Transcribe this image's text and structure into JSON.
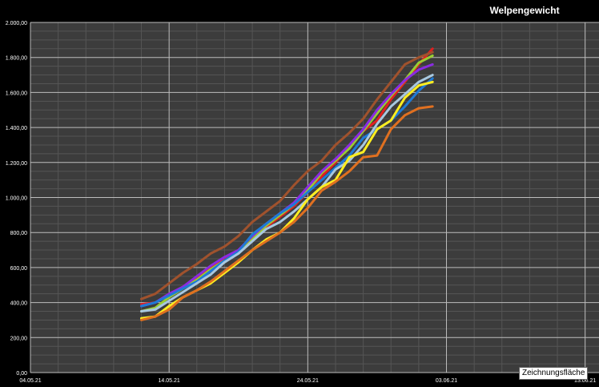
{
  "chart_data": {
    "type": "line",
    "title": "Welpengewicht",
    "xlabel": "",
    "ylabel": "",
    "x_ticks": [
      "04.05.21",
      "14.05.21",
      "24.05.21",
      "03.06.21",
      "13.06.21"
    ],
    "y_ticks": [
      "0,00",
      "200,00",
      "400,00",
      "600,00",
      "800,00",
      "1.000,00",
      "1.200,00",
      "1.400,00",
      "1.600,00",
      "1.800,00",
      "2.000,00"
    ],
    "xlim": [
      "04.05.21",
      "14.06.21"
    ],
    "ylim": [
      0,
      2000
    ],
    "grid": true,
    "legend": "none",
    "x": [
      "12.05.21",
      "13.05.21",
      "14.05.21",
      "15.05.21",
      "16.05.21",
      "17.05.21",
      "18.05.21",
      "19.05.21",
      "20.05.21",
      "21.05.21",
      "22.05.21",
      "23.05.21",
      "24.05.21",
      "25.05.21",
      "26.05.21",
      "27.05.21",
      "28.05.21",
      "29.05.21",
      "30.05.21",
      "31.05.21",
      "01.06.21",
      "02.06.21"
    ],
    "series": [
      {
        "color": "#e02020",
        "values": [
          390,
          400,
          440,
          490,
          540,
          600,
          650,
          700,
          760,
          830,
          890,
          950,
          1030,
          1120,
          1200,
          1290,
          1380,
          1440,
          1560,
          1660,
          1760,
          1850
        ]
      },
      {
        "color": "#a0522d",
        "values": [
          420,
          450,
          510,
          570,
          620,
          680,
          720,
          780,
          860,
          920,
          980,
          1070,
          1150,
          1210,
          1300,
          1370,
          1450,
          1560,
          1660,
          1760,
          1800,
          1830
        ]
      },
      {
        "color": "#9acd32",
        "values": [
          350,
          370,
          430,
          480,
          530,
          590,
          640,
          680,
          760,
          840,
          900,
          960,
          1040,
          1140,
          1210,
          1280,
          1380,
          1480,
          1580,
          1670,
          1770,
          1810
        ]
      },
      {
        "color": "#8a2be2",
        "values": [
          380,
          400,
          450,
          490,
          550,
          610,
          660,
          700,
          780,
          850,
          910,
          970,
          1060,
          1150,
          1220,
          1300,
          1390,
          1500,
          1590,
          1670,
          1730,
          1760
        ]
      },
      {
        "color": "#1e7ad6",
        "values": [
          380,
          400,
          440,
          480,
          520,
          580,
          640,
          690,
          790,
          850,
          910,
          960,
          1030,
          1100,
          1170,
          1240,
          1340,
          1390,
          1440,
          1520,
          1610,
          1680
        ]
      },
      {
        "color": "#a8c8e0",
        "values": [
          350,
          360,
          410,
          460,
          510,
          560,
          630,
          680,
          750,
          820,
          860,
          920,
          990,
          1060,
          1160,
          1210,
          1300,
          1420,
          1520,
          1590,
          1660,
          1700
        ]
      },
      {
        "color": "#ffee20",
        "values": [
          310,
          320,
          380,
          430,
          470,
          510,
          570,
          630,
          700,
          760,
          800,
          880,
          990,
          1060,
          1100,
          1230,
          1260,
          1390,
          1440,
          1570,
          1640,
          1660
        ]
      },
      {
        "color": "#e07020",
        "values": [
          300,
          320,
          360,
          430,
          470,
          520,
          580,
          640,
          700,
          750,
          800,
          860,
          940,
          1040,
          1090,
          1150,
          1230,
          1240,
          1390,
          1470,
          1510,
          1520
        ]
      }
    ]
  },
  "tooltip": "Zeichnungsfläche"
}
